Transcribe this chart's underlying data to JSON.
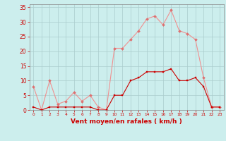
{
  "x": [
    0,
    1,
    2,
    3,
    4,
    5,
    6,
    7,
    8,
    9,
    10,
    11,
    12,
    13,
    14,
    15,
    16,
    17,
    18,
    19,
    20,
    21,
    22,
    23
  ],
  "rafales": [
    8,
    0,
    10,
    2,
    3,
    6,
    3,
    5,
    1,
    0,
    21,
    21,
    24,
    27,
    31,
    32,
    29,
    34,
    27,
    26,
    24,
    11,
    1,
    1
  ],
  "moyen": [
    1,
    0,
    1,
    1,
    1,
    1,
    1,
    1,
    0,
    0,
    5,
    5,
    10,
    11,
    13,
    13,
    13,
    14,
    10,
    10,
    11,
    8,
    1,
    1
  ],
  "bg_color": "#cceeed",
  "grid_color": "#aacccc",
  "line_color_rafales": "#f09090",
  "line_color_moyen": "#cc0000",
  "marker_color_rafales": "#dd7070",
  "marker_color_moyen": "#cc0000",
  "xlabel": "Vent moyen/en rafales ( km/h )",
  "ylim": [
    0,
    36
  ],
  "yticks": [
    0,
    5,
    10,
    15,
    20,
    25,
    30,
    35
  ],
  "xlim": [
    -0.5,
    23.5
  ],
  "tick_color": "#cc0000",
  "label_color": "#cc0000",
  "spine_color": "#888888"
}
